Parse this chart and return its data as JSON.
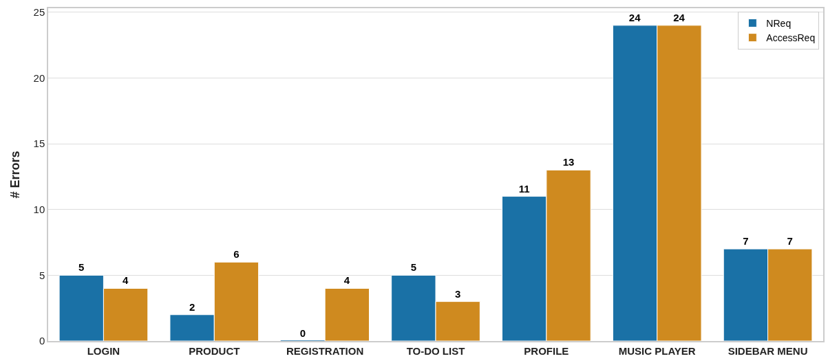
{
  "chart_data": {
    "type": "bar",
    "ylabel": "# Errors",
    "categories": [
      "LOGIN",
      "PRODUCT",
      "REGISTRATION",
      "TO-DO LIST",
      "PROFILE",
      "MUSIC PLAYER",
      "SIDEBAR MENU"
    ],
    "series": [
      {
        "name": "NReq",
        "color": "#1a71a6",
        "values": [
          5,
          2,
          0,
          5,
          11,
          24,
          7
        ]
      },
      {
        "name": "AccessReq",
        "color": "#cf8a1f",
        "values": [
          4,
          6,
          4,
          3,
          13,
          24,
          7
        ]
      }
    ],
    "ylim": [
      0,
      25.3
    ],
    "yticks": [
      0,
      5,
      10,
      15,
      20,
      25
    ],
    "grid": "y",
    "legend": "top right",
    "data_labels": true
  }
}
